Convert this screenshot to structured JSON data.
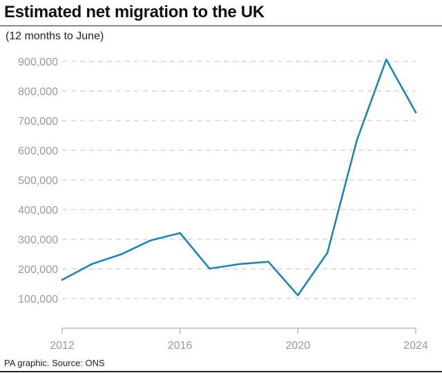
{
  "chart_data": {
    "type": "line",
    "title": "Estimated net migration to the UK",
    "subtitle": "(12 months to June)",
    "source": "PA graphic. Source: ONS",
    "xlabel": "",
    "ylabel": "",
    "x": [
      2012,
      2013,
      2014,
      2015,
      2016,
      2017,
      2018,
      2019,
      2020,
      2021,
      2022,
      2023,
      2024
    ],
    "series": [
      {
        "values": [
          163000,
          216000,
          249000,
          296000,
          321000,
          201000,
          216000,
          224000,
          111000,
          254000,
          634000,
          906000,
          728000
        ]
      }
    ],
    "xlim": [
      2012,
      2024
    ],
    "ylim": [
      0,
      900000
    ],
    "yticks": [
      100000,
      200000,
      300000,
      400000,
      500000,
      600000,
      700000,
      800000,
      900000
    ],
    "yticklabels": [
      "100,000",
      "200,000",
      "300,000",
      "400,000",
      "500,000",
      "600,000",
      "700,000",
      "800,000",
      "900,000"
    ],
    "xticks": [
      2012,
      2016,
      2020,
      2024
    ],
    "xticklabels": [
      "2012",
      "2016",
      "2020",
      "2024"
    ],
    "grid": "horizontal dashed",
    "colors": {
      "line": "#1a85b8",
      "grid": "#cccccc",
      "axis": "#999999",
      "tick_text": "#999999",
      "text": "#111111"
    }
  }
}
